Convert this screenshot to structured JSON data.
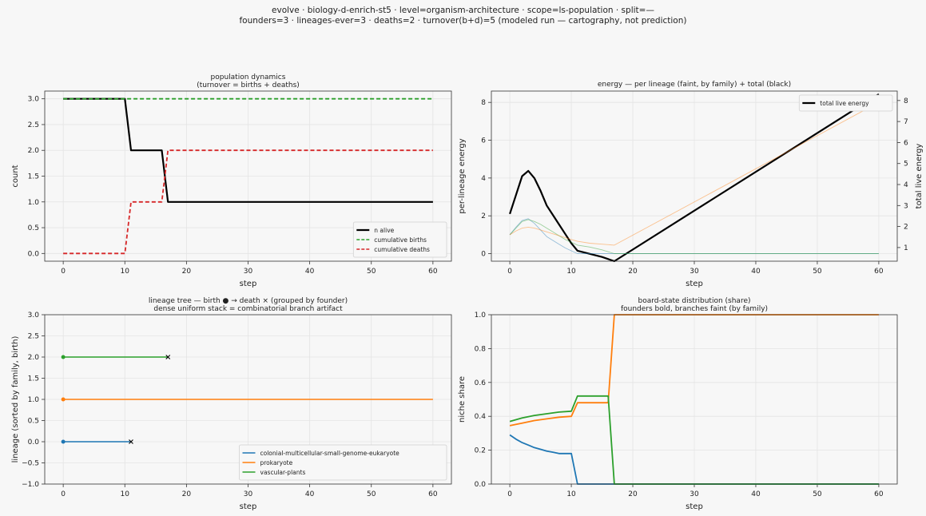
{
  "figure": {
    "title_line1": "evolve · biology-d-enrich-st5 · level=organism-architecture · scope=ls-population · split=—",
    "title_line2": "founders=3 · lineages-ever=3 · deaths=2 · turnover(b+d)=5   (modeled run — cartography, not prediction)"
  },
  "chart_data": [
    {
      "id": "population",
      "type": "line",
      "title": "population dynamics",
      "subtitle": "(turnover = births + deaths)",
      "xlabel": "step",
      "ylabel": "count",
      "xlim": [
        -3,
        63
      ],
      "ylim": [
        -0.15,
        3.15
      ],
      "xticks": [
        0,
        10,
        20,
        30,
        40,
        50,
        60
      ],
      "yticks": [
        0.0,
        0.5,
        1.0,
        1.5,
        2.0,
        2.5,
        3.0
      ],
      "ytick_labels": [
        "0.0",
        "0.5",
        "1.0",
        "1.5",
        "2.0",
        "2.5",
        "3.0"
      ],
      "grid": true,
      "legend_position": "lower-right",
      "series": [
        {
          "name": "n alive",
          "color": "#000000",
          "style": "solid",
          "points": [
            [
              0,
              3
            ],
            [
              10,
              3
            ],
            [
              11,
              2
            ],
            [
              16,
              2
            ],
            [
              17,
              1
            ],
            [
              60,
              1
            ]
          ]
        },
        {
          "name": "cumulative births",
          "color": "#2ca02c",
          "style": "dashed",
          "points": [
            [
              0,
              3
            ],
            [
              60,
              3
            ]
          ]
        },
        {
          "name": "cumulative deaths",
          "color": "#d62728",
          "style": "dashed",
          "points": [
            [
              0,
              0
            ],
            [
              10,
              0
            ],
            [
              11,
              1
            ],
            [
              16,
              1
            ],
            [
              17,
              2
            ],
            [
              60,
              2
            ]
          ]
        }
      ]
    },
    {
      "id": "energy",
      "type": "line",
      "title": "energy — per lineage (faint, by family) + total (black)",
      "xlabel": "step",
      "ylabel": "per-lineage energy",
      "y2label": "total live energy",
      "xlim": [
        -3,
        63
      ],
      "ylim": [
        -0.4,
        8.6
      ],
      "y2lim": [
        0.35,
        8.45
      ],
      "xticks": [
        0,
        10,
        20,
        30,
        40,
        50,
        60
      ],
      "yticks": [
        0,
        2,
        4,
        6,
        8
      ],
      "y2ticks": [
        1,
        2,
        3,
        4,
        5,
        6,
        7,
        8
      ],
      "grid": true,
      "legend_position": "top-right",
      "series": [
        {
          "name": "total live energy",
          "axis": "right",
          "color": "#000000",
          "points": [
            [
              0,
              2.6
            ],
            [
              1,
              3.5
            ],
            [
              2,
              4.4
            ],
            [
              3,
              4.65
            ],
            [
              4,
              4.3
            ],
            [
              5,
              3.7
            ],
            [
              6,
              3.0
            ],
            [
              7,
              2.55
            ],
            [
              8,
              2.1
            ],
            [
              9,
              1.65
            ],
            [
              10,
              1.2
            ],
            [
              11,
              0.85
            ],
            [
              13,
              0.7
            ],
            [
              15,
              0.55
            ],
            [
              17,
              0.35
            ],
            [
              60,
              8.3
            ]
          ]
        },
        {
          "name": "",
          "axis": "left",
          "color": "#1f77b4",
          "points": [
            [
              0,
              1.0
            ],
            [
              1,
              1.4
            ],
            [
              2,
              1.75
            ],
            [
              3,
              1.85
            ],
            [
              4,
              1.6
            ],
            [
              5,
              1.25
            ],
            [
              6,
              0.9
            ],
            [
              7,
              0.7
            ],
            [
              8,
              0.5
            ],
            [
              9,
              0.3
            ],
            [
              10,
              0.15
            ],
            [
              11,
              0
            ],
            [
              60,
              0
            ]
          ]
        },
        {
          "name": "",
          "axis": "left",
          "color": "#2ca02c",
          "points": [
            [
              0,
              1.0
            ],
            [
              1,
              1.35
            ],
            [
              2,
              1.7
            ],
            [
              3,
              1.8
            ],
            [
              4,
              1.7
            ],
            [
              5,
              1.55
            ],
            [
              6,
              1.35
            ],
            [
              7,
              1.15
            ],
            [
              8,
              0.95
            ],
            [
              9,
              0.75
            ],
            [
              10,
              0.6
            ],
            [
              11,
              0.45
            ],
            [
              13,
              0.35
            ],
            [
              15,
              0.2
            ],
            [
              16,
              0.1
            ],
            [
              17,
              0
            ],
            [
              60,
              0
            ]
          ]
        },
        {
          "name": "",
          "axis": "left",
          "color": "#ff7f0e",
          "points": [
            [
              0,
              1.0
            ],
            [
              1,
              1.2
            ],
            [
              2,
              1.35
            ],
            [
              3,
              1.4
            ],
            [
              4,
              1.35
            ],
            [
              5,
              1.25
            ],
            [
              6,
              1.15
            ],
            [
              7,
              1.05
            ],
            [
              8,
              0.95
            ],
            [
              9,
              0.85
            ],
            [
              10,
              0.75
            ],
            [
              11,
              0.65
            ],
            [
              13,
              0.55
            ],
            [
              15,
              0.5
            ],
            [
              17,
              0.45
            ],
            [
              60,
              8.0
            ]
          ]
        }
      ]
    },
    {
      "id": "tree",
      "type": "line",
      "title": "lineage tree — birth ● → death ×  (grouped by founder)",
      "subtitle": "dense uniform stack = combinatorial branch artifact",
      "xlabel": "step",
      "ylabel": "lineage (sorted by family, birth)",
      "xlim": [
        -3,
        63
      ],
      "ylim": [
        -1.0,
        3.0
      ],
      "xticks": [
        0,
        10,
        20,
        30,
        40,
        50,
        60
      ],
      "yticks": [
        -1.0,
        -0.5,
        0.0,
        0.5,
        1.0,
        1.5,
        2.0,
        2.5,
        3.0
      ],
      "ytick_labels": [
        "−1.0",
        "−0.5",
        "0.0",
        "0.5",
        "1.0",
        "1.5",
        "2.0",
        "2.5",
        "3.0"
      ],
      "grid": true,
      "legend_position": "lower-right",
      "series": [
        {
          "name": "colonial-multicellular-small-genome-eukaryote",
          "color": "#1f77b4",
          "y": 0,
          "birth": 0,
          "end": 11,
          "died": true
        },
        {
          "name": "prokaryote",
          "color": "#ff7f0e",
          "y": 1,
          "birth": 0,
          "end": 60,
          "died": false
        },
        {
          "name": "vascular-plants",
          "color": "#2ca02c",
          "y": 2,
          "birth": 0,
          "end": 17,
          "died": true
        }
      ]
    },
    {
      "id": "board",
      "type": "line",
      "title": "board-state distribution (share)",
      "subtitle": "founders bold, branches faint (by family)",
      "xlabel": "step",
      "ylabel": "niche share",
      "xlim": [
        -3,
        63
      ],
      "ylim": [
        0.0,
        1.0
      ],
      "xticks": [
        0,
        10,
        20,
        30,
        40,
        50,
        60
      ],
      "yticks": [
        0.0,
        0.2,
        0.4,
        0.6,
        0.8,
        1.0
      ],
      "ytick_labels": [
        "0.0",
        "0.2",
        "0.4",
        "0.6",
        "0.8",
        "1.0"
      ],
      "grid": true,
      "series": [
        {
          "name": "",
          "color": "#1f77b4",
          "points": [
            [
              0,
              0.29
            ],
            [
              1,
              0.265
            ],
            [
              2,
              0.245
            ],
            [
              3,
              0.23
            ],
            [
              4,
              0.215
            ],
            [
              5,
              0.205
            ],
            [
              6,
              0.195
            ],
            [
              7,
              0.188
            ],
            [
              8,
              0.18
            ],
            [
              9,
              0.18
            ],
            [
              10,
              0.18
            ],
            [
              11,
              0
            ],
            [
              60,
              0
            ]
          ]
        },
        {
          "name": "",
          "color": "#ff7f0e",
          "points": [
            [
              0,
              0.345
            ],
            [
              2,
              0.36
            ],
            [
              4,
              0.375
            ],
            [
              6,
              0.385
            ],
            [
              8,
              0.395
            ],
            [
              10,
              0.4
            ],
            [
              11,
              0.48
            ],
            [
              16,
              0.48
            ],
            [
              17,
              1.0
            ],
            [
              60,
              1.0
            ]
          ]
        },
        {
          "name": "",
          "color": "#2ca02c",
          "points": [
            [
              0,
              0.37
            ],
            [
              2,
              0.39
            ],
            [
              4,
              0.405
            ],
            [
              6,
              0.415
            ],
            [
              8,
              0.425
            ],
            [
              10,
              0.43
            ],
            [
              11,
              0.52
            ],
            [
              16,
              0.52
            ],
            [
              17,
              0
            ],
            [
              60,
              0
            ]
          ]
        }
      ]
    }
  ]
}
